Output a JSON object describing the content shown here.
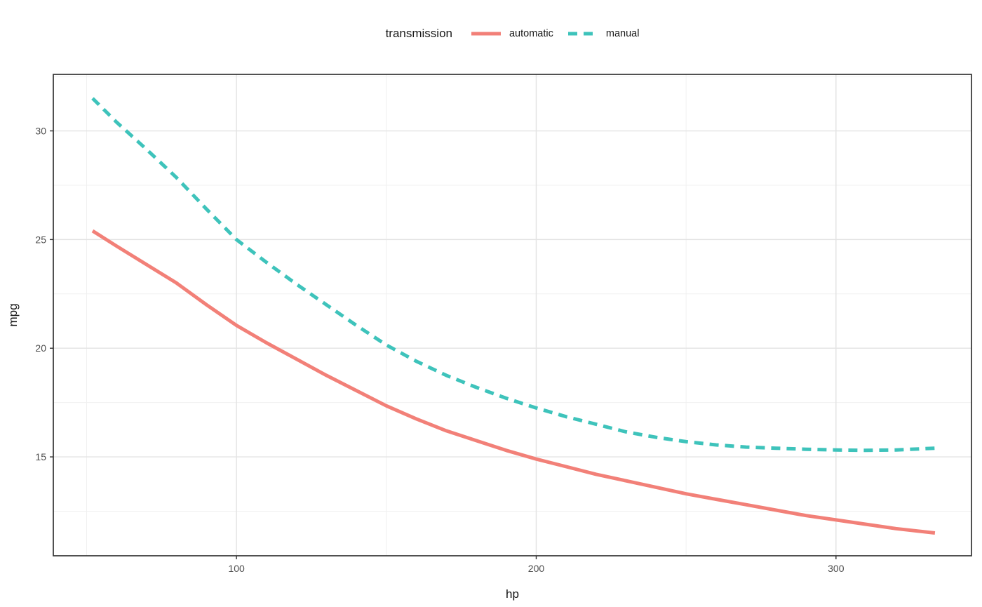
{
  "chart_data": {
    "type": "line",
    "title": "",
    "xlabel": "hp",
    "ylabel": "mpg",
    "legend_title": "transmission",
    "legend_position": "top-center",
    "grid": true,
    "background": "#ffffff",
    "panel_border_color": "#333333",
    "major_grid_color": "#e3e3e3",
    "minor_grid_color": "#f0f0f0",
    "tick_color": "#333333",
    "tick_label_color": "#4d4d4d",
    "xlim": [
      38.9,
      345.2
    ],
    "ylim": [
      10.45,
      32.6
    ],
    "x_ticks": [
      100,
      200,
      300
    ],
    "x_minor_ticks": [
      50,
      150,
      250,
      350
    ],
    "y_ticks": [
      15,
      20,
      25,
      30
    ],
    "y_minor_ticks": [
      12.5,
      17.5,
      22.5,
      27.5,
      32.5
    ],
    "x": [
      52,
      60,
      70,
      80,
      90,
      100,
      110,
      120,
      130,
      140,
      150,
      160,
      170,
      180,
      190,
      200,
      210,
      220,
      230,
      240,
      250,
      260,
      270,
      280,
      290,
      300,
      310,
      320,
      333
    ],
    "series": [
      {
        "name": "automatic",
        "color": "#F28078",
        "linestyle": "solid",
        "linewidth": 5,
        "values": [
          25.4,
          24.7,
          23.85,
          23.0,
          22.0,
          21.05,
          20.25,
          19.5,
          18.75,
          18.05,
          17.35,
          16.75,
          16.2,
          15.75,
          15.3,
          14.9,
          14.55,
          14.2,
          13.9,
          13.6,
          13.3,
          13.05,
          12.8,
          12.55,
          12.3,
          12.1,
          11.9,
          11.7,
          11.5
        ]
      },
      {
        "name": "manual",
        "color": "#3EC3BB",
        "linestyle": "dashed",
        "linewidth": 5,
        "values": [
          31.5,
          30.4,
          29.15,
          27.85,
          26.4,
          25.0,
          23.95,
          22.95,
          22.0,
          21.05,
          20.15,
          19.4,
          18.75,
          18.2,
          17.7,
          17.25,
          16.85,
          16.5,
          16.15,
          15.9,
          15.7,
          15.55,
          15.45,
          15.4,
          15.35,
          15.32,
          15.3,
          15.32,
          15.4
        ]
      }
    ]
  }
}
